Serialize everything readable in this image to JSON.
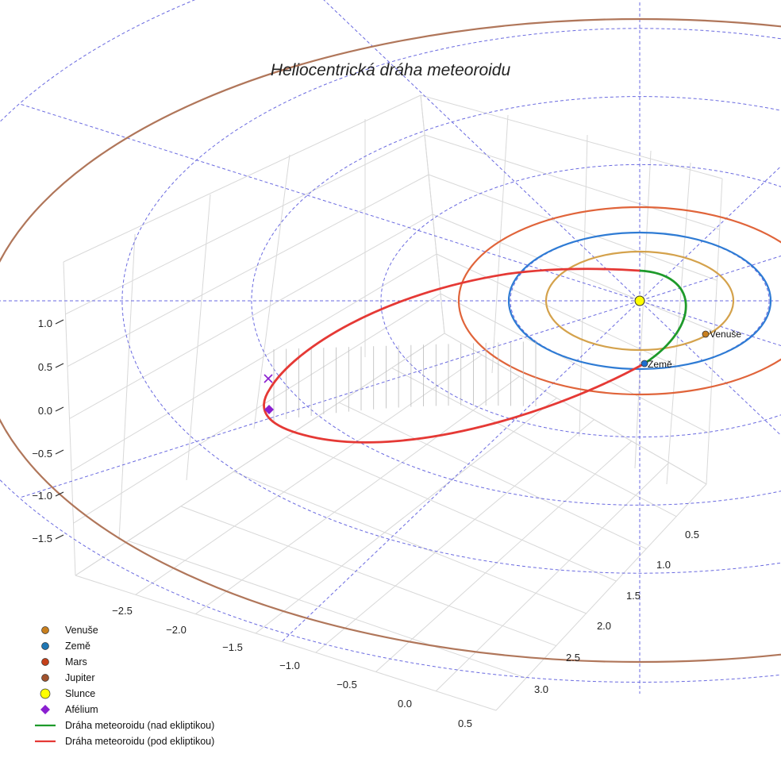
{
  "chart_data": {
    "type": "3d-line",
    "title": "Heliocentrická dráha meteoroidu",
    "xlabel": "",
    "ylabel": "",
    "zlabel": "",
    "z_ticks": [
      "1.0",
      "0.5",
      "0.0",
      "−0.5",
      "−1.0",
      "−1.5"
    ],
    "x_ticks": [
      "−2.5",
      "−2.0",
      "−1.5",
      "−1.0",
      "−0.5",
      "0.0",
      "0.5"
    ],
    "y_ticks": [
      "0.5",
      "1.0",
      "1.5",
      "2.0",
      "2.5",
      "3.0"
    ],
    "grid": true,
    "legend_position": "bottom-left",
    "planet_orbits_au": [
      {
        "name": "Venuše",
        "radius": 0.72,
        "color": "#d4a24c"
      },
      {
        "name": "Země",
        "radius": 1.0,
        "color": "#2e7bd4"
      },
      {
        "name": "Mars",
        "radius": 1.52,
        "color": "#e0643a"
      },
      {
        "name": "Jupiter",
        "radius": 5.2,
        "color": "#b0765a"
      }
    ],
    "meteoroid_orbit": {
      "semi_major_axis_au": 1.9,
      "eccentricity": 0.56,
      "perihelion_distance_au": 0.84,
      "aphelion_distance_au": 2.96,
      "inclination_deg": 12
    },
    "markers": [
      {
        "name": "Slunce",
        "label": "",
        "color": "#ffff00"
      },
      {
        "name": "Venuše",
        "label": "Venuše",
        "color": "#c87f1e"
      },
      {
        "name": "Země",
        "label": "Země",
        "color": "#1f6fd0"
      },
      {
        "name": "Afélium",
        "label": "",
        "color": "#8a1fd0"
      }
    ],
    "series": [
      {
        "name": "Dráha meteoroidu (nad ekliptikou)",
        "color": "#1e9a2b",
        "style": "line"
      },
      {
        "name": "Dráha meteoroidu (pod ekliptikou)",
        "color": "#e53935",
        "style": "line"
      }
    ],
    "legend": [
      {
        "label": "Venuše",
        "symbol": "circle",
        "color": "#c87f1e"
      },
      {
        "label": "Země",
        "symbol": "circle",
        "color": "#1f77b4"
      },
      {
        "label": "Mars",
        "symbol": "circle",
        "color": "#c5401a"
      },
      {
        "label": "Jupiter",
        "symbol": "circle",
        "color": "#a0522d"
      },
      {
        "label": "Slunce",
        "symbol": "circle-large",
        "color": "#ffff00"
      },
      {
        "label": "Afélium",
        "symbol": "diamond",
        "color": "#8a1fd0"
      },
      {
        "label": "Dráha meteoroidu (nad ekliptikou)",
        "symbol": "line",
        "color": "#1e9a2b"
      },
      {
        "label": "Dráha meteoroidu (pod ekliptikou)",
        "symbol": "line",
        "color": "#e53935"
      }
    ]
  }
}
